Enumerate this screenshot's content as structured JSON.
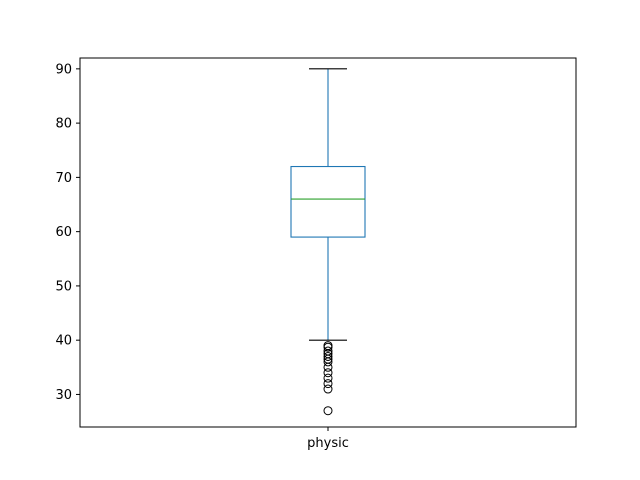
{
  "chart_data": {
    "type": "box",
    "categories": [
      "physic"
    ],
    "series": [
      {
        "whisker_low": 40,
        "q1": 59,
        "median": 66,
        "q3": 72,
        "whisker_high": 90,
        "outliers": [
          39,
          38.7,
          38,
          37.5,
          37,
          36.5,
          36,
          35,
          34,
          33,
          32,
          31,
          27
        ]
      }
    ],
    "ylim": [
      24,
      92
    ],
    "yticks": [
      30,
      40,
      50,
      60,
      70,
      80,
      90
    ],
    "xlabel": "",
    "ylabel": "",
    "title": "",
    "grid": false,
    "colors": {
      "box": "#1f77b4",
      "median": "#2ca02c",
      "cap": "#000000",
      "outlier": "#000000",
      "axes": "#000000"
    }
  }
}
